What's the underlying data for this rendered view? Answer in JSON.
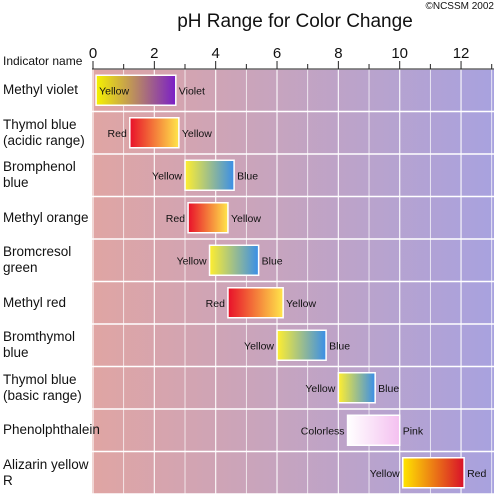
{
  "header": {
    "copyright": "©NCSSM 2002",
    "indicator_header": "Indicator name"
  },
  "chart_data": {
    "type": "range-bar",
    "title": "pH Range for Color Change",
    "xlabel": "",
    "ylabel": "Indicator name",
    "xlim": [
      0,
      13
    ],
    "x_ticks": [
      0,
      2,
      4,
      6,
      8,
      10,
      12
    ],
    "grid": true,
    "background_gradient": [
      "#e0a5a3",
      "#a8a2df"
    ],
    "indicators": [
      {
        "name": "Methyl violet",
        "start": 0.1,
        "end": 2.7,
        "low_color_label": "Yellow",
        "high_color_label": "Violet",
        "low_color": "#f5f200",
        "high_color": "#7a1ec8"
      },
      {
        "name": "Thymol blue (acidic range)",
        "start": 1.2,
        "end": 2.8,
        "low_color_label": "Red",
        "high_color_label": "Yellow",
        "low_color": "#e8102a",
        "high_color": "#ffe64a"
      },
      {
        "name": "Bromphenol blue",
        "start": 3.0,
        "end": 4.6,
        "low_color_label": "Yellow",
        "high_color_label": "Blue",
        "low_color": "#ffee30",
        "high_color": "#3a8ee8"
      },
      {
        "name": "Methyl orange",
        "start": 3.1,
        "end": 4.4,
        "low_color_label": "Red",
        "high_color_label": "Yellow",
        "low_color": "#e8102a",
        "high_color": "#ffe64a"
      },
      {
        "name": "Bromcresol green",
        "start": 3.8,
        "end": 5.4,
        "low_color_label": "Yellow",
        "high_color_label": "Blue",
        "low_color": "#ffee30",
        "high_color": "#3a8ee8"
      },
      {
        "name": "Methyl red",
        "start": 4.4,
        "end": 6.2,
        "low_color_label": "Red",
        "high_color_label": "Yellow",
        "low_color": "#e8102a",
        "high_color": "#ffe64a"
      },
      {
        "name": "Bromthymol blue",
        "start": 6.0,
        "end": 7.6,
        "low_color_label": "Yellow",
        "high_color_label": "Blue",
        "low_color": "#ffee30",
        "high_color": "#3a8ee8"
      },
      {
        "name": "Thymol blue (basic range)",
        "start": 8.0,
        "end": 9.2,
        "low_color_label": "Yellow",
        "high_color_label": "Blue",
        "low_color": "#ffee30",
        "high_color": "#3a8ee8"
      },
      {
        "name": "Phenolphthalein",
        "start": 8.3,
        "end": 10.0,
        "low_color_label": "Colorless",
        "high_color_label": "Pink",
        "low_color": "#ffffff",
        "high_color": "#f4c0f0"
      },
      {
        "name": "Alizarin yellow R",
        "start": 10.1,
        "end": 12.1,
        "low_color_label": "Yellow",
        "high_color_label": "Red",
        "low_color": "#ffe600",
        "high_color": "#d8102a"
      }
    ]
  }
}
